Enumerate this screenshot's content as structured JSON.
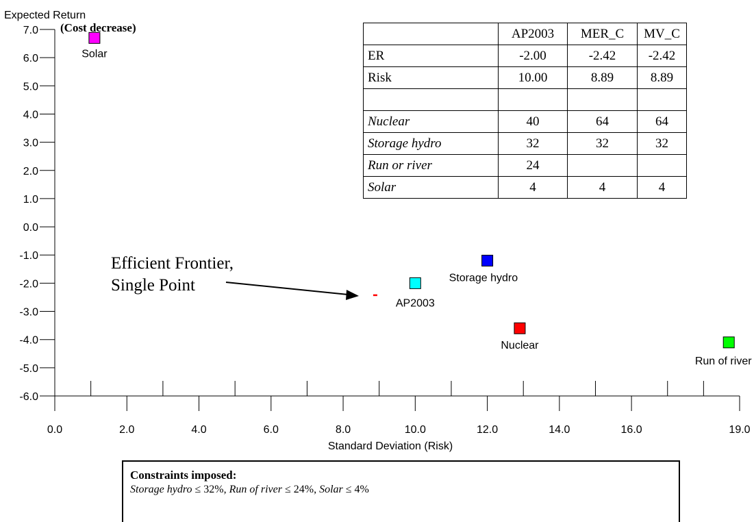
{
  "chart_data": {
    "type": "scatter",
    "ylabel": "Expected Return",
    "ylabel_sub": "(Cost decrease)",
    "xlabel": "Standard Deviation (Risk)",
    "xlim": [
      0,
      19
    ],
    "ylim": [
      -6,
      7
    ],
    "x_ticks": [
      "0.0",
      "2.0",
      "4.0",
      "6.0",
      "8.0",
      "10.0",
      "12.0",
      "14.0",
      "16.0",
      "19.0"
    ],
    "x_tick_values": [
      0,
      2,
      4,
      6,
      8,
      10,
      12,
      14,
      16,
      19
    ],
    "y_ticks": [
      "7.0",
      "6.0",
      "5.0",
      "4.0",
      "3.0",
      "2.0",
      "1.0",
      "0.0",
      "-1.0",
      "-2.0",
      "-3.0",
      "-4.0",
      "-5.0",
      "-6.0"
    ],
    "y_tick_values": [
      7,
      6,
      5,
      4,
      3,
      2,
      1,
      0,
      -1,
      -2,
      -3,
      -4,
      -5,
      -6
    ],
    "points": [
      {
        "label": "Solar",
        "x": 1.1,
        "y": 6.7,
        "color": "#ff00ff"
      },
      {
        "label": "Storage hydro",
        "x": 12.0,
        "y": -1.2,
        "color": "#0000ff"
      },
      {
        "label": "AP2003",
        "x": 10.0,
        "y": -2.0,
        "color": "#00ffff"
      },
      {
        "label": "Nuclear",
        "x": 12.9,
        "y": -3.6,
        "color": "#ff0000"
      },
      {
        "label": "Run of river",
        "x": 18.7,
        "y": -4.1,
        "color": "#00ff00"
      }
    ],
    "frontier_point": {
      "x": 8.89,
      "y": -2.42,
      "color": "#ff0000"
    },
    "annotation": {
      "line1": "Efficient Frontier,",
      "line2": "Single Point"
    }
  },
  "table": {
    "header": [
      "",
      "AP2003",
      "MER_C",
      "MV_C"
    ],
    "rows": [
      {
        "label": "ER",
        "italic": false,
        "values": [
          "-2.00",
          "-2.42",
          "-2.42"
        ]
      },
      {
        "label": "Risk",
        "italic": false,
        "values": [
          "10.00",
          "8.89",
          "8.89"
        ]
      },
      {
        "label": "",
        "italic": false,
        "values": [
          "",
          "",
          ""
        ]
      },
      {
        "label": "Nuclear",
        "italic": true,
        "values": [
          "40",
          "64",
          "64"
        ]
      },
      {
        "label": "Storage hydro",
        "italic": true,
        "values": [
          "32",
          "32",
          "32"
        ]
      },
      {
        "label": "Run or river",
        "italic": true,
        "values": [
          "24",
          "",
          ""
        ]
      },
      {
        "label": "Solar",
        "italic": true,
        "values": [
          "4",
          "4",
          "4"
        ]
      }
    ]
  },
  "constraints": {
    "title": "Constraints imposed:",
    "items": [
      {
        "name": "Storage hydro",
        "rest": " ≤ 32%, "
      },
      {
        "name": "Run of river",
        "rest": " ≤ 24%, "
      },
      {
        "name": "Solar",
        "rest": " ≤ 4%"
      }
    ]
  }
}
